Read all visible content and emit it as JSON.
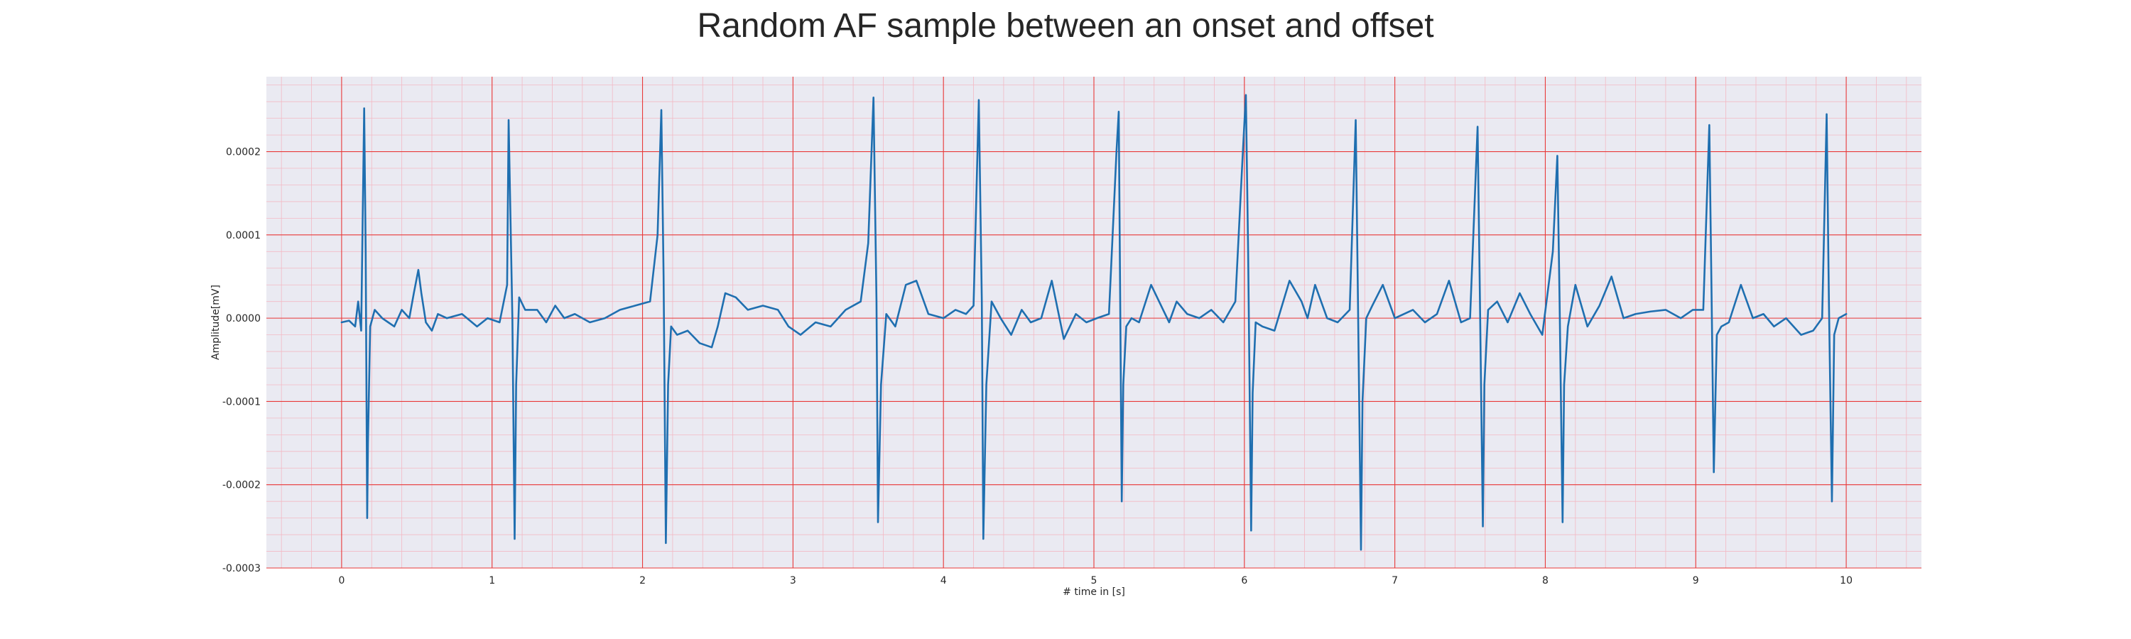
{
  "chart_data": {
    "type": "line",
    "title": "Random AF sample between an onset and offset",
    "xlabel": "# time in [s]",
    "ylabel": "Amplitude[mV]",
    "xlim": [
      -0.5,
      10.5
    ],
    "ylim": [
      -0.0003,
      0.00029
    ],
    "x_ticks": [
      0,
      1,
      2,
      3,
      4,
      5,
      6,
      7,
      8,
      9,
      10
    ],
    "x_tick_labels": [
      "0",
      "1",
      "2",
      "3",
      "4",
      "5",
      "6",
      "7",
      "8",
      "9",
      "10"
    ],
    "y_ticks": [
      -0.0003,
      -0.0002,
      -0.0001,
      0.0,
      0.0001,
      0.0002
    ],
    "y_tick_labels": [
      "-0.0003",
      "-0.0002",
      "-0.0001",
      "0.0000",
      "0.0001",
      "0.0002"
    ],
    "x_minor_step": 0.2,
    "y_minor_step": 2e-05,
    "grid": true,
    "colors": {
      "plot_background": "#eaeaf2",
      "major_grid": "#e83a3a",
      "minor_grid": "#f3b9c4",
      "line": "#1f6fb0",
      "text": "#262626"
    },
    "series": [
      {
        "x": [
          0.0,
          0.05,
          0.09,
          0.11,
          0.13,
          0.15,
          0.16,
          0.17,
          0.175,
          0.19,
          0.22,
          0.27,
          0.31,
          0.35,
          0.4,
          0.45,
          0.48,
          0.51,
          0.53,
          0.56,
          0.6,
          0.64,
          0.7,
          0.8,
          0.9,
          0.97,
          1.05,
          1.1,
          1.11,
          1.135,
          1.15,
          1.16,
          1.18,
          1.22,
          1.3,
          1.36,
          1.42,
          1.48,
          1.55,
          1.65,
          1.75,
          1.85,
          1.95,
          2.05,
          2.1,
          2.125,
          2.14,
          2.155,
          2.17,
          2.19,
          2.23,
          2.3,
          2.38,
          2.46,
          2.5,
          2.55,
          2.62,
          2.7,
          2.8,
          2.9,
          2.97,
          3.05,
          3.15,
          3.25,
          3.35,
          3.45,
          3.5,
          3.535,
          3.555,
          3.565,
          3.585,
          3.62,
          3.68,
          3.75,
          3.82,
          3.9,
          4.0,
          4.08,
          4.15,
          4.2,
          4.235,
          4.255,
          4.265,
          4.285,
          4.32,
          4.38,
          4.45,
          4.52,
          4.58,
          4.65,
          4.72,
          4.8,
          4.88,
          4.95,
          5.02,
          5.1,
          5.15,
          5.165,
          5.185,
          5.195,
          5.215,
          5.25,
          5.3,
          5.38,
          5.46,
          5.5,
          5.55,
          5.62,
          5.7,
          5.78,
          5.86,
          5.94,
          5.99,
          6.01,
          6.025,
          6.045,
          6.055,
          6.075,
          6.12,
          6.2,
          6.3,
          6.38,
          6.42,
          6.47,
          6.55,
          6.62,
          6.7,
          6.74,
          6.755,
          6.775,
          6.785,
          6.81,
          6.85,
          6.92,
          7.0,
          7.06,
          7.12,
          7.2,
          7.28,
          7.36,
          7.44,
          7.5,
          7.55,
          7.565,
          7.585,
          7.595,
          7.62,
          7.68,
          7.75,
          7.83,
          7.9,
          7.98,
          8.05,
          8.08,
          8.095,
          8.115,
          8.125,
          8.15,
          8.2,
          8.28,
          8.36,
          8.44,
          8.52,
          8.6,
          8.7,
          8.8,
          8.9,
          8.98,
          9.05,
          9.09,
          9.105,
          9.12,
          9.14,
          9.17,
          9.22,
          9.3,
          9.38,
          9.45,
          9.52,
          9.6,
          9.7,
          9.78,
          9.84,
          9.87,
          9.885,
          9.905,
          9.92,
          9.95,
          10.0
        ],
        "y": [
          -5e-06,
          -3e-06,
          -1e-05,
          2e-05,
          -1.5e-05,
          0.000252,
          8e-05,
          -0.00024,
          -0.00015,
          -1e-05,
          1e-05,
          0.0,
          -5e-06,
          -1e-05,
          1e-05,
          0.0,
          3e-05,
          5.8e-05,
          3e-05,
          -5e-06,
          -1.5e-05,
          5e-06,
          0.0,
          5e-06,
          -1e-05,
          0.0,
          -5e-06,
          4e-05,
          0.000238,
          0.0,
          -0.000265,
          -8e-05,
          2.5e-05,
          1e-05,
          1e-05,
          -5e-06,
          1.5e-05,
          0.0,
          5e-06,
          -5e-06,
          0.0,
          1e-05,
          1.5e-05,
          2e-05,
          0.0001,
          0.00025,
          5e-05,
          -0.00027,
          -8e-05,
          -1e-05,
          -2e-05,
          -1.5e-05,
          -3e-05,
          -3.5e-05,
          -1e-05,
          3e-05,
          2.5e-05,
          1e-05,
          1.5e-05,
          1e-05,
          -1e-05,
          -2e-05,
          -5e-06,
          -1e-05,
          1e-05,
          2e-05,
          9e-05,
          0.000265,
          2e-05,
          -0.000245,
          -8e-05,
          5e-06,
          -1e-05,
          4e-05,
          4.5e-05,
          5e-06,
          0.0,
          1e-05,
          5e-06,
          1.5e-05,
          0.000262,
          2e-05,
          -0.000265,
          -8e-05,
          2e-05,
          0.0,
          -2e-05,
          1e-05,
          -5e-06,
          0.0,
          4.5e-05,
          -2.5e-05,
          5e-06,
          -5e-06,
          0.0,
          5e-06,
          0.0002,
          0.000248,
          -0.00022,
          -8e-05,
          -1e-05,
          0.0,
          -5e-06,
          4e-05,
          1e-05,
          -5e-06,
          2e-05,
          5e-06,
          0.0,
          1e-05,
          -5e-06,
          2e-05,
          0.0002,
          0.000268,
          8e-05,
          -0.000255,
          -9e-05,
          -5e-06,
          -1e-05,
          -1.5e-05,
          4.5e-05,
          2e-05,
          0.0,
          4e-05,
          0.0,
          -5e-06,
          1e-05,
          0.000238,
          2e-05,
          -0.000278,
          -0.0001,
          0.0,
          1.5e-05,
          4e-05,
          0.0,
          5e-06,
          1e-05,
          -5e-06,
          5e-06,
          4.5e-05,
          -5e-06,
          0.0,
          0.00023,
          3e-05,
          -0.00025,
          -8e-05,
          1e-05,
          2e-05,
          -5e-06,
          3e-05,
          5e-06,
          -2e-05,
          8e-05,
          0.000195,
          2e-05,
          -0.000245,
          -8e-05,
          -1e-05,
          4e-05,
          -1e-05,
          1.5e-05,
          5e-05,
          0.0,
          5e-06,
          8e-06,
          1e-05,
          0.0,
          1e-05,
          1e-05,
          0.000232,
          3e-05,
          -0.000185,
          -2e-05,
          -1e-05,
          -5e-06,
          4e-05,
          0.0,
          5e-06,
          -1e-05,
          0.0,
          -2e-05,
          -1.5e-05,
          0.0,
          0.000245,
          2e-05,
          -0.00022,
          -2e-05,
          0.0,
          5e-06
        ]
      }
    ]
  }
}
